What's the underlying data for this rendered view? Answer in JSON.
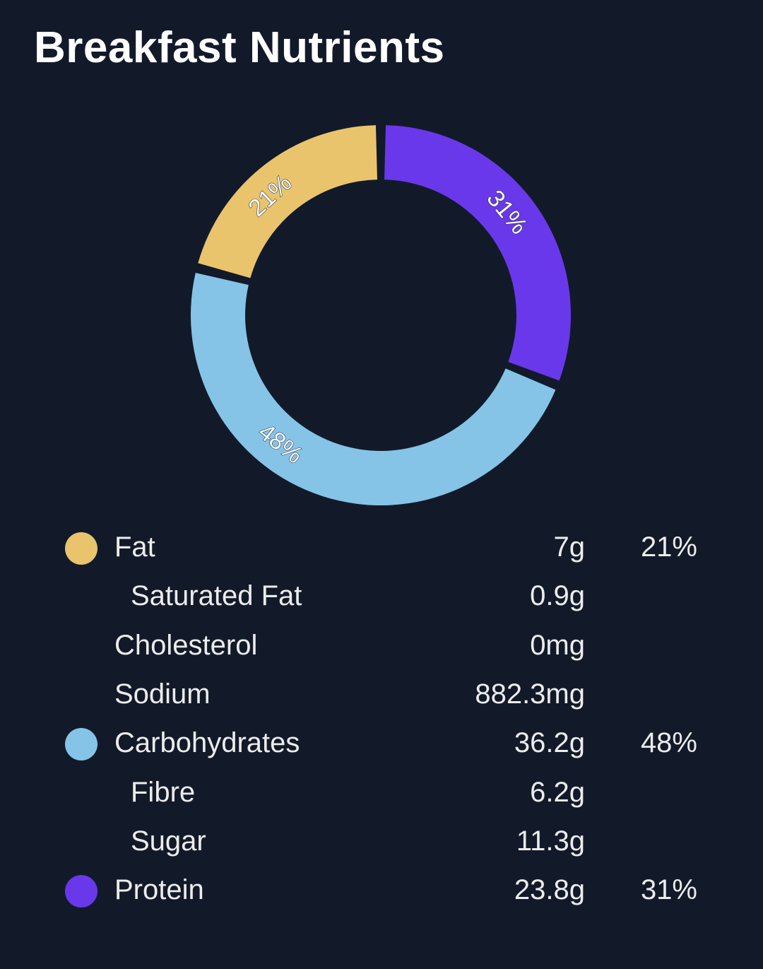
{
  "title": "Breakfast Nutrients",
  "colors": {
    "fat": "#e9c46c",
    "carbohydrates": "#85c4e6",
    "protein": "#6a38eb",
    "background": "#121a2a"
  },
  "chart_data": {
    "type": "pie",
    "title": "Breakfast Nutrients",
    "series": [
      {
        "name": "Fat",
        "value": 21,
        "label": "21%",
        "color": "#e9c46c"
      },
      {
        "name": "Carbohydrates",
        "value": 48,
        "label": "48%",
        "color": "#85c4e6"
      },
      {
        "name": "Protein",
        "value": 31,
        "label": "31%",
        "color": "#6a38eb"
      }
    ]
  },
  "nutrients": [
    {
      "label": "Fat",
      "amount": "7g",
      "percent": "21%",
      "indent": false,
      "dot_color": "#e9c46c"
    },
    {
      "label": "Saturated Fat",
      "amount": "0.9g",
      "percent": "",
      "indent": true,
      "dot_color": ""
    },
    {
      "label": "Cholesterol",
      "amount": "0mg",
      "percent": "",
      "indent": false,
      "dot_color": ""
    },
    {
      "label": "Sodium",
      "amount": "882.3mg",
      "percent": "",
      "indent": false,
      "dot_color": ""
    },
    {
      "label": "Carbohydrates",
      "amount": "36.2g",
      "percent": "48%",
      "indent": false,
      "dot_color": "#85c4e6"
    },
    {
      "label": "Fibre",
      "amount": "6.2g",
      "percent": "",
      "indent": true,
      "dot_color": ""
    },
    {
      "label": "Sugar",
      "amount": "11.3g",
      "percent": "",
      "indent": true,
      "dot_color": ""
    },
    {
      "label": "Protein",
      "amount": "23.8g",
      "percent": "31%",
      "indent": false,
      "dot_color": "#6a38eb"
    }
  ]
}
